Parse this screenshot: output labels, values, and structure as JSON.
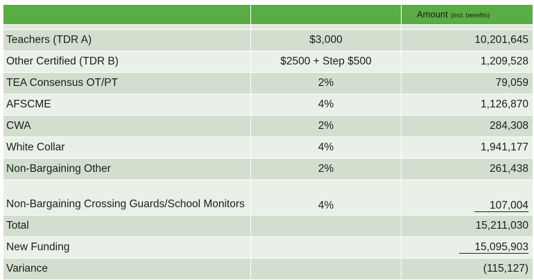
{
  "header": {
    "col1": "",
    "col2": "",
    "amount_label": "Amount",
    "amount_sub": "(incl. benefits)"
  },
  "rows": [
    {
      "label": "Teachers (TDR A)",
      "increase": "$3,000",
      "amount": "10,201,645"
    },
    {
      "label": "Other Certified (TDR B)",
      "increase": "$2500 + Step $500",
      "amount": "1,209,528"
    },
    {
      "label": "TEA Consensus OT/PT",
      "increase": "2%",
      "amount": "79,059"
    },
    {
      "label": "AFSCME",
      "increase": "4%",
      "amount": "1,126,870"
    },
    {
      "label": "CWA",
      "increase": "2%",
      "amount": "284,308"
    },
    {
      "label": "White Collar",
      "increase": "4%",
      "amount": "1,941,177"
    },
    {
      "label": "Non-Bargaining Other",
      "increase": "2%",
      "amount": "261,438"
    },
    {
      "label": "Non-Bargaining Crossing Guards/School Monitors",
      "increase": "4%",
      "amount": "107,004"
    },
    {
      "label": "Total",
      "increase": "",
      "amount": "15,211,030"
    },
    {
      "label": "New Funding",
      "increase": "",
      "amount": "15,095,903"
    },
    {
      "label": "Variance",
      "increase": "",
      "amount": "(115,127)"
    }
  ]
}
